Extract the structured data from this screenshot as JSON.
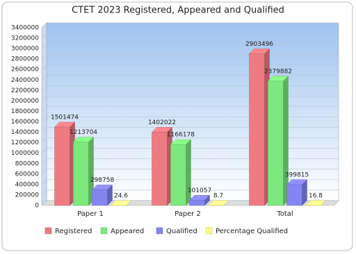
{
  "chart_data": {
    "type": "bar3d",
    "title": "CTET 2023 Registered, Appeared and Qualified",
    "categories": [
      "Paper 1",
      "Paper 2",
      "Total"
    ],
    "series": [
      {
        "name": "Registered",
        "color": "#ee7b82",
        "values": [
          1501474,
          1402022,
          2903496
        ]
      },
      {
        "name": "Appeared",
        "color": "#7de87d",
        "values": [
          1213704,
          1166178,
          2379882
        ]
      },
      {
        "name": "Qualified",
        "color": "#8585f2",
        "values": [
          298758,
          101057,
          399815
        ]
      },
      {
        "name": "Percentage Qualified",
        "color": "#fbfb86",
        "values": [
          24.6,
          8.7,
          16.8
        ]
      }
    ],
    "ylim": [
      0,
      3400000
    ],
    "yticks": [
      0,
      200000,
      400000,
      600000,
      800000,
      1000000,
      1200000,
      1400000,
      1600000,
      1800000,
      2000000,
      2200000,
      2400000,
      2600000,
      2800000,
      3000000,
      3200000,
      3400000
    ],
    "grid": true
  }
}
